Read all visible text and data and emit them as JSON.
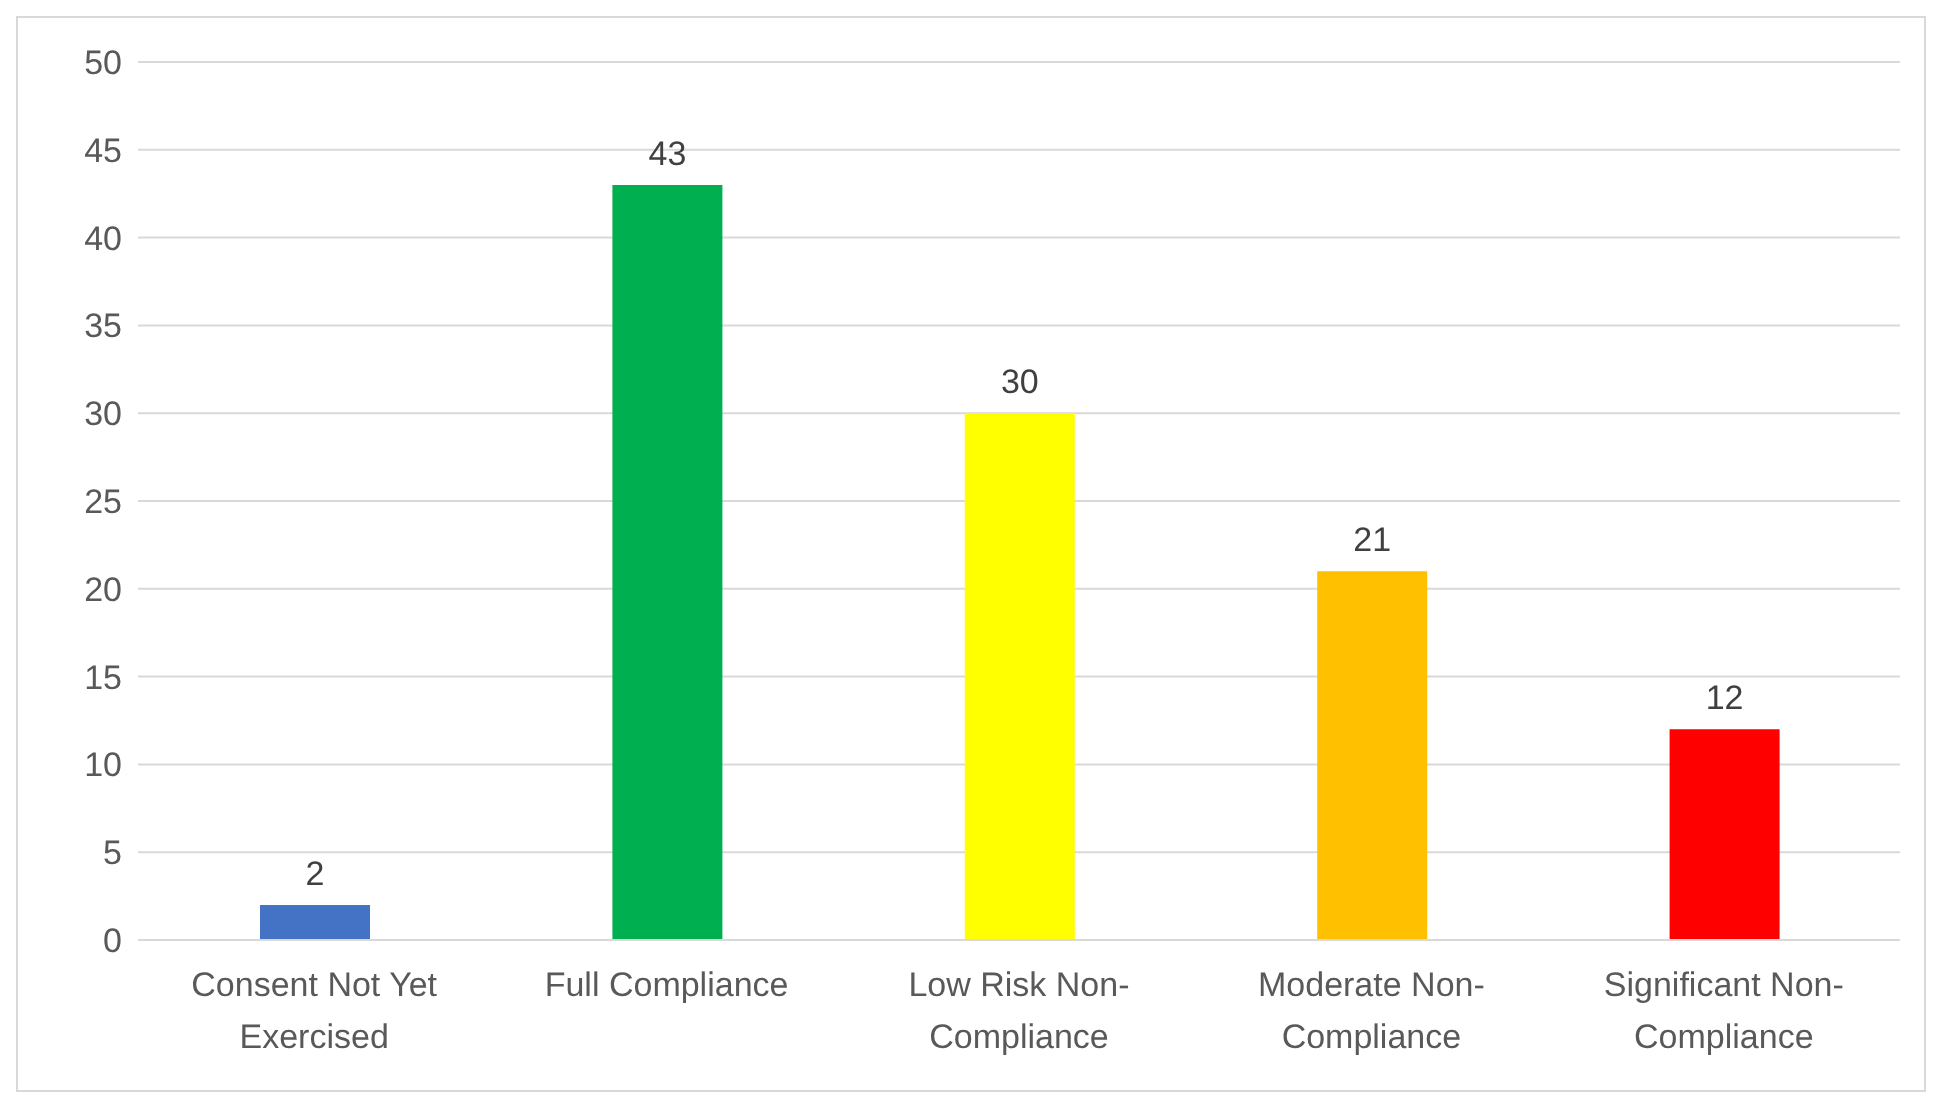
{
  "chart_data": {
    "type": "bar",
    "categories": [
      "Consent Not Yet Exercised",
      "Full Compliance",
      "Low Risk Non-Compliance",
      "Moderate Non-Compliance",
      "Significant Non-Compliance"
    ],
    "values": [
      2,
      43,
      30,
      21,
      12
    ],
    "colors": [
      "#4472c4",
      "#00b050",
      "#ffff00",
      "#ffc000",
      "#ff0000"
    ],
    "ylim": [
      0,
      50
    ],
    "yticks": [
      0,
      5,
      10,
      15,
      20,
      25,
      30,
      35,
      40,
      45,
      50
    ],
    "grid": "y",
    "data_labels": true
  }
}
